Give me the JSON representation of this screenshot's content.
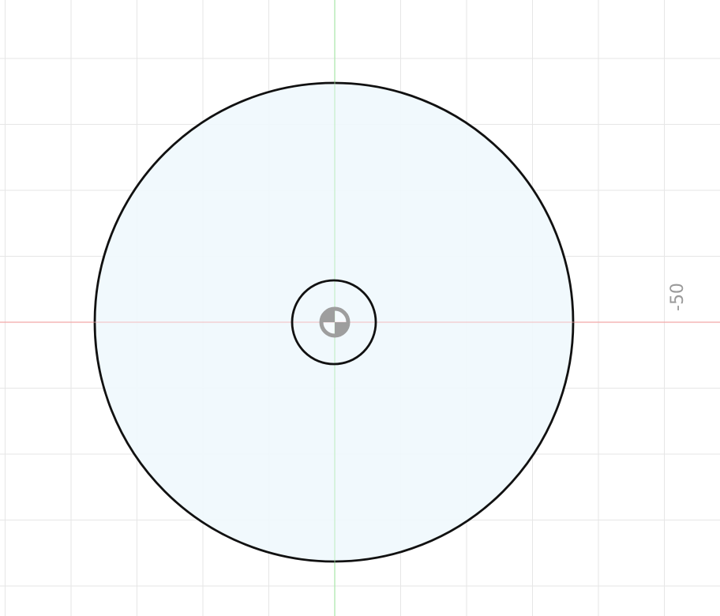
{
  "viewport": {
    "background_color": "#ffffff",
    "grid_color": "#e6e6e6",
    "x_axis_color": "#f2a8a8",
    "y_axis_color": "#a8e6a8"
  },
  "ruler": {
    "label": "-50"
  },
  "sketch": {
    "profile_fill_color": "#f0f8fd",
    "stroke_color": "#111111",
    "origin_marker_color": "#9e9e9e",
    "origin_icon": "origin-point-icon"
  }
}
